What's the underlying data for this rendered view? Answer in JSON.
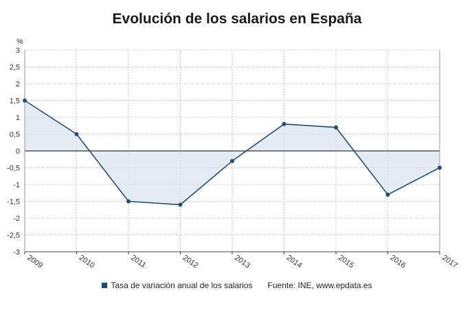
{
  "chart_data": {
    "type": "line",
    "title": "Evolución de los salarios en España",
    "ylabel": "%",
    "x": [
      "2009",
      "2010",
      "2011",
      "2012",
      "2013",
      "2014",
      "2015",
      "2016",
      "2017"
    ],
    "series": [
      {
        "name": "Tasa de variación anual de los salarios",
        "values": [
          1.5,
          0.5,
          -1.5,
          -1.6,
          -0.3,
          0.8,
          0.7,
          -1.3,
          -0.5
        ]
      }
    ],
    "ylim": [
      -3,
      3
    ],
    "yticks": [
      3,
      2.5,
      2,
      1.5,
      1,
      0.5,
      0,
      -0.5,
      -1,
      -1.5,
      -2,
      -2.5,
      -3
    ],
    "ytick_labels": [
      "3",
      "2,5",
      "2",
      "1,5",
      "1",
      "0,5",
      "0",
      "-0,5",
      "-1",
      "-1,5",
      "-2",
      "-2,5",
      "-3"
    ],
    "grid": true,
    "legend_position": "bottom",
    "source": "Fuente: INE, www.epdata.es"
  },
  "colors": {
    "line": "#1f4e79",
    "fill": "#dce4ed",
    "grid": "#c8c8c8",
    "zero_line": "#333333"
  }
}
